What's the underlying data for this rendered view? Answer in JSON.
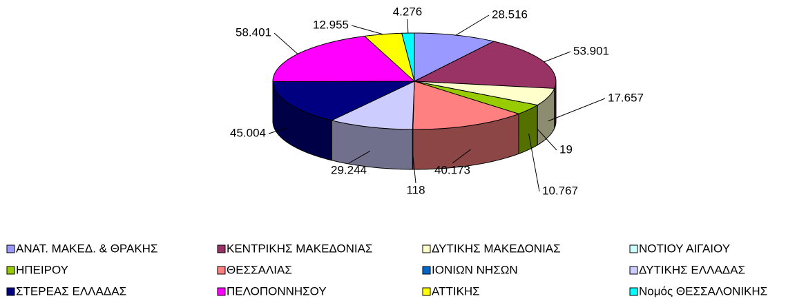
{
  "chart_data": {
    "type": "pie3d",
    "categories": [
      "ΑΝΑΤ. ΜΑΚΕΔ. & ΘΡΑΚΗΣ",
      "ΚΕΝΤΡΙΚΗΣ ΜΑΚΕΔΟΝΙΑΣ",
      "ΔΥΤΙΚΗΣ ΜΑΚΕΔΟΝΙΑΣ",
      "ΝΟΤΙΟΥ ΑΙΓΑΙΟΥ",
      "ΗΠΕΙΡΟΥ",
      "ΘΕΣΣΑΛΙΑΣ",
      "ΙΟΝΙΩΝ ΝΗΣΩΝ",
      "ΔΥΤΙΚΗΣ ΕΛΛΑΔΑΣ",
      "ΣΤΕΡΕΑΣ ΕΛΛΑΔΑΣ",
      "ΠΕΛΟΠΟΝΝΗΣΟΥ",
      "ΑΤΤΙΚΗΣ",
      "Νομός ΘΕΣΣΑΛΟΝΙΚΗΣ"
    ],
    "values": [
      28516,
      53901,
      17657,
      19,
      10767,
      40173,
      118,
      29244,
      45004,
      58401,
      12955,
      4276
    ],
    "value_labels": [
      "28.516",
      "53.901",
      "17.657",
      "19",
      "10.767",
      "40.173",
      "118",
      "29.244",
      "45.004",
      "58.401",
      "12.955",
      "4.276"
    ],
    "colors": [
      "#9999ff",
      "#993366",
      "#ffffcc",
      "#ccffff",
      "#99cc00",
      "#ff8080",
      "#0066cc",
      "#ccccff",
      "#000080",
      "#ff00ff",
      "#ffff00",
      "#00ffff"
    ],
    "legend": "bottom"
  }
}
